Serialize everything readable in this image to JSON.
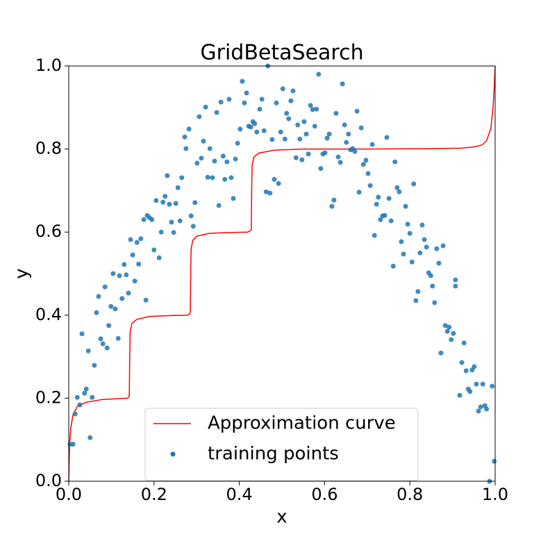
{
  "chart_data": {
    "type": "scatter",
    "title": "GridBetaSearch",
    "x_label": "x",
    "y_label": "y",
    "xlim": [
      0,
      1
    ],
    "ylim": [
      0,
      1
    ],
    "xticks": [
      {
        "value": 0,
        "label": "0.0"
      },
      {
        "value": 0.2,
        "label": "0.2"
      },
      {
        "value": 0.4,
        "label": "0.4"
      },
      {
        "value": 0.6,
        "label": "0.6"
      },
      {
        "value": 0.8,
        "label": "0.8"
      },
      {
        "value": 1,
        "label": "1.0"
      }
    ],
    "yticks": [
      {
        "value": 0,
        "label": "0.0"
      },
      {
        "value": 0.2,
        "label": "0.2"
      },
      {
        "value": 0.4,
        "label": "0.4"
      },
      {
        "value": 0.6,
        "label": "0.6"
      },
      {
        "value": 0.8,
        "label": "0.8"
      },
      {
        "value": 1,
        "label": "1.0"
      }
    ],
    "legend": "lower center",
    "series": [
      {
        "name": "Approximation curve",
        "type": "line",
        "color": "#ff0000",
        "x": [
          0,
          0.002,
          0.005,
          0.01,
          0.02,
          0.04,
          0.08,
          0.12,
          0.138,
          0.142,
          0.143,
          0.144,
          0.148,
          0.16,
          0.19,
          0.24,
          0.28,
          0.285,
          0.286,
          0.287,
          0.291,
          0.3,
          0.33,
          0.38,
          0.42,
          0.428,
          0.429,
          0.43,
          0.434,
          0.445,
          0.48,
          0.55,
          0.7,
          0.85,
          0.92,
          0.95,
          0.97,
          0.98,
          0.99,
          0.995,
          0.998,
          1.0
        ],
        "values": [
          0,
          0.09,
          0.13,
          0.16,
          0.18,
          0.19,
          0.197,
          0.199,
          0.2,
          0.205,
          0.3,
          0.36,
          0.38,
          0.39,
          0.397,
          0.399,
          0.4,
          0.405,
          0.5,
          0.56,
          0.58,
          0.59,
          0.597,
          0.599,
          0.6,
          0.605,
          0.7,
          0.76,
          0.78,
          0.79,
          0.797,
          0.8,
          0.8,
          0.801,
          0.802,
          0.805,
          0.81,
          0.82,
          0.85,
          0.9,
          0.95,
          1.0
        ]
      },
      {
        "name": "training points",
        "type": "scatter",
        "color": "#1f77b4",
        "x": [
          0.003,
          0.01,
          0.015,
          0.02,
          0.026,
          0.031,
          0.037,
          0.041,
          0.046,
          0.05,
          0.055,
          0.06,
          0.065,
          0.07,
          0.075,
          0.08,
          0.085,
          0.09,
          0.094,
          0.099,
          0.104,
          0.109,
          0.116,
          0.119,
          0.125,
          0.13,
          0.135,
          0.14,
          0.145,
          0.15,
          0.155,
          0.16,
          0.164,
          0.169,
          0.176,
          0.181,
          0.184,
          0.189,
          0.195,
          0.2,
          0.205,
          0.212,
          0.217,
          0.221,
          0.226,
          0.231,
          0.236,
          0.241,
          0.246,
          0.251,
          0.256,
          0.261,
          0.265,
          0.272,
          0.275,
          0.282,
          0.287,
          0.292,
          0.296,
          0.301,
          0.306,
          0.311,
          0.316,
          0.321,
          0.326,
          0.331,
          0.337,
          0.342,
          0.347,
          0.352,
          0.357,
          0.362,
          0.366,
          0.371,
          0.376,
          0.381,
          0.386,
          0.391,
          0.396,
          0.402,
          0.407,
          0.412,
          0.417,
          0.422,
          0.427,
          0.432,
          0.436,
          0.441,
          0.448,
          0.453,
          0.458,
          0.463,
          0.467,
          0.472,
          0.477,
          0.482,
          0.487,
          0.492,
          0.497,
          0.502,
          0.507,
          0.511,
          0.516,
          0.521,
          0.526,
          0.533,
          0.537,
          0.542,
          0.547,
          0.552,
          0.557,
          0.562,
          0.567,
          0.572,
          0.577,
          0.581,
          0.586,
          0.591,
          0.596,
          0.601,
          0.606,
          0.611,
          0.617,
          0.622,
          0.627,
          0.632,
          0.637,
          0.642,
          0.647,
          0.651,
          0.656,
          0.661,
          0.666,
          0.671,
          0.676,
          0.681,
          0.686,
          0.691,
          0.697,
          0.702,
          0.707,
          0.712,
          0.717,
          0.722,
          0.726,
          0.731,
          0.736,
          0.741,
          0.746,
          0.751,
          0.756,
          0.761,
          0.765,
          0.77,
          0.775,
          0.78,
          0.785,
          0.79,
          0.795,
          0.8,
          0.805,
          0.809,
          0.814,
          0.819,
          0.824,
          0.829,
          0.834,
          0.839,
          0.844,
          0.849,
          0.853,
          0.858,
          0.863,
          0.868,
          0.873,
          0.878,
          0.883,
          0.888,
          0.892,
          0.897,
          0.902,
          0.907,
          0.907,
          0.917,
          0.922,
          0.927,
          0.932,
          0.937,
          0.941,
          0.946,
          0.951,
          0.956,
          0.961,
          0.966,
          0.971,
          0.976,
          0.98,
          0.987,
          0.993,
          0.998
        ],
        "values": [
          0.089,
          0.089,
          0.162,
          0.202,
          0.184,
          0.355,
          0.212,
          0.222,
          0.314,
          0.105,
          0.202,
          0.279,
          0.406,
          0.445,
          0.343,
          0.331,
          0.468,
          0.321,
          0.375,
          0.421,
          0.5,
          0.415,
          0.344,
          0.495,
          0.44,
          0.522,
          0.497,
          0.453,
          0.582,
          0.545,
          0.482,
          0.575,
          0.523,
          0.584,
          0.63,
          0.436,
          0.64,
          0.635,
          0.63,
          0.557,
          0.676,
          0.538,
          0.6,
          0.672,
          0.686,
          0.736,
          0.667,
          0.624,
          0.599,
          0.669,
          0.707,
          0.627,
          0.731,
          0.829,
          0.801,
          0.848,
          0.639,
          0.614,
          0.671,
          0.766,
          0.878,
          0.778,
          0.819,
          0.901,
          0.732,
          0.801,
          0.731,
          0.771,
          0.888,
          0.664,
          0.913,
          0.783,
          0.727,
          0.769,
          0.92,
          0.731,
          0.681,
          0.776,
          0.814,
          0.848,
          0.963,
          0.911,
          0.935,
          0.855,
          0.853,
          0.866,
          0.861,
          0.841,
          0.896,
          0.92,
          0.844,
          0.697,
          1.0,
          0.694,
          0.823,
          0.727,
          0.911,
          0.717,
          0.841,
          0.945,
          0.824,
          0.886,
          0.873,
          0.916,
          0.94,
          0.779,
          0.858,
          0.824,
          0.774,
          0.866,
          0.836,
          0.788,
          0.905,
          0.895,
          0.855,
          0.896,
          0.98,
          0.753,
          0.788,
          0.791,
          0.826,
          0.836,
          0.662,
          0.677,
          0.886,
          0.781,
          0.768,
          0.957,
          0.858,
          0.816,
          0.836,
          0.798,
          0.801,
          0.794,
          0.891,
          0.696,
          0.851,
          0.763,
          0.773,
          0.741,
          0.712,
          0.811,
          0.592,
          0.667,
          0.684,
          0.63,
          0.639,
          0.64,
          0.828,
          0.681,
          0.627,
          0.518,
          0.769,
          0.707,
          0.697,
          0.577,
          0.547,
          0.662,
          0.619,
          0.597,
          0.528,
          0.716,
          0.435,
          0.457,
          0.55,
          0.617,
          0.582,
          0.564,
          0.502,
          0.495,
          0.47,
          0.43,
          0.56,
          0.525,
          0.309,
          0.567,
          0.375,
          0.361,
          0.371,
          0.341,
          0.356,
          0.47,
          0.485,
          0.207,
          0.286,
          0.333,
          0.266,
          0.222,
          0.216,
          0.268,
          0.276,
          0.234,
          0.169,
          0.179,
          0.234,
          0.182,
          0.174,
          0.0,
          0.229,
          0.048
        ]
      }
    ]
  }
}
